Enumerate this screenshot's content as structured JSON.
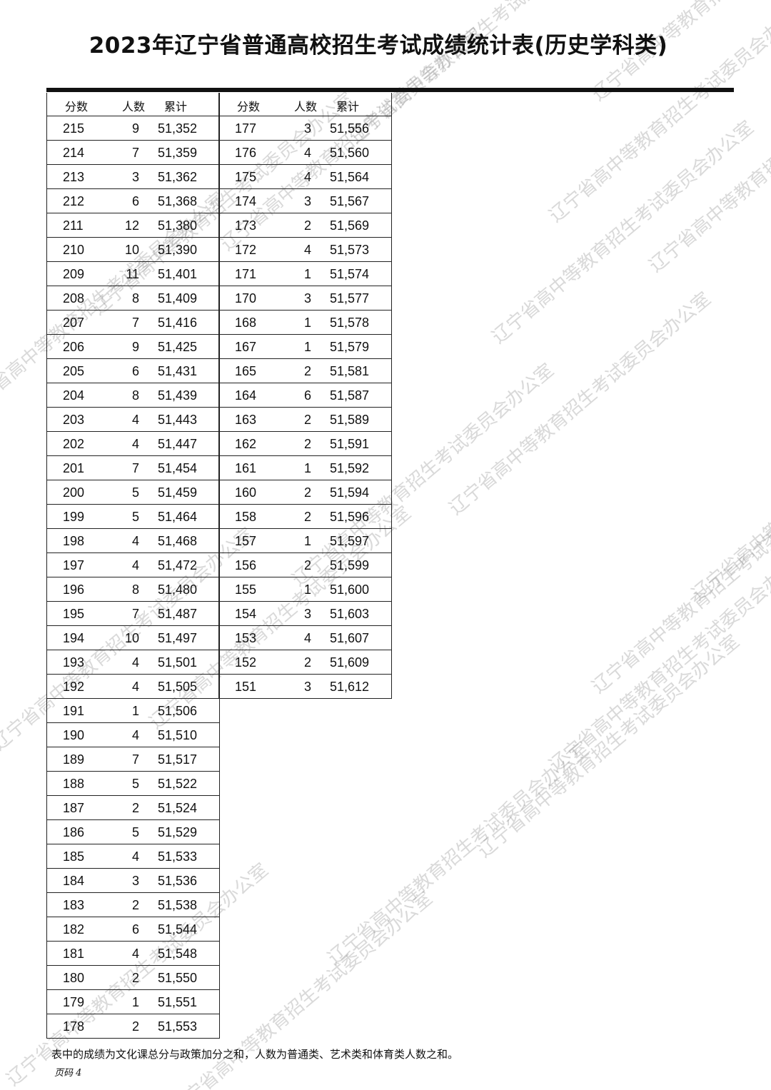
{
  "title": "2023年辽宁省普通高校招生考试成绩统计表(历史学科类)",
  "headers": [
    "分数",
    "人数",
    "累计"
  ],
  "left_rows": [
    [
      "215",
      "9",
      "51,352"
    ],
    [
      "214",
      "7",
      "51,359"
    ],
    [
      "213",
      "3",
      "51,362"
    ],
    [
      "212",
      "6",
      "51,368"
    ],
    [
      "211",
      "12",
      "51,380"
    ],
    [
      "210",
      "10",
      "51,390"
    ],
    [
      "209",
      "11",
      "51,401"
    ],
    [
      "208",
      "8",
      "51,409"
    ],
    [
      "207",
      "7",
      "51,416"
    ],
    [
      "206",
      "9",
      "51,425"
    ],
    [
      "205",
      "6",
      "51,431"
    ],
    [
      "204",
      "8",
      "51,439"
    ],
    [
      "203",
      "4",
      "51,443"
    ],
    [
      "202",
      "4",
      "51,447"
    ],
    [
      "201",
      "7",
      "51,454"
    ],
    [
      "200",
      "5",
      "51,459"
    ],
    [
      "199",
      "5",
      "51,464"
    ],
    [
      "198",
      "4",
      "51,468"
    ],
    [
      "197",
      "4",
      "51,472"
    ],
    [
      "196",
      "8",
      "51,480"
    ],
    [
      "195",
      "7",
      "51,487"
    ],
    [
      "194",
      "10",
      "51,497"
    ],
    [
      "193",
      "4",
      "51,501"
    ],
    [
      "192",
      "4",
      "51,505"
    ],
    [
      "191",
      "1",
      "51,506"
    ],
    [
      "190",
      "4",
      "51,510"
    ],
    [
      "189",
      "7",
      "51,517"
    ],
    [
      "188",
      "5",
      "51,522"
    ],
    [
      "187",
      "2",
      "51,524"
    ],
    [
      "186",
      "5",
      "51,529"
    ],
    [
      "185",
      "4",
      "51,533"
    ],
    [
      "184",
      "3",
      "51,536"
    ],
    [
      "183",
      "2",
      "51,538"
    ],
    [
      "182",
      "6",
      "51,544"
    ],
    [
      "181",
      "4",
      "51,548"
    ],
    [
      "180",
      "2",
      "51,550"
    ],
    [
      "179",
      "1",
      "51,551"
    ],
    [
      "178",
      "2",
      "51,553"
    ]
  ],
  "right_rows": [
    [
      "177",
      "3",
      "51,556"
    ],
    [
      "176",
      "4",
      "51,560"
    ],
    [
      "175",
      "4",
      "51,564"
    ],
    [
      "174",
      "3",
      "51,567"
    ],
    [
      "173",
      "2",
      "51,569"
    ],
    [
      "172",
      "4",
      "51,573"
    ],
    [
      "171",
      "1",
      "51,574"
    ],
    [
      "170",
      "3",
      "51,577"
    ],
    [
      "168",
      "1",
      "51,578"
    ],
    [
      "167",
      "1",
      "51,579"
    ],
    [
      "165",
      "2",
      "51,581"
    ],
    [
      "164",
      "6",
      "51,587"
    ],
    [
      "163",
      "2",
      "51,589"
    ],
    [
      "162",
      "2",
      "51,591"
    ],
    [
      "161",
      "1",
      "51,592"
    ],
    [
      "160",
      "2",
      "51,594"
    ],
    [
      "158",
      "2",
      "51,596"
    ],
    [
      "157",
      "1",
      "51,597"
    ],
    [
      "156",
      "2",
      "51,599"
    ],
    [
      "155",
      "1",
      "51,600"
    ],
    [
      "154",
      "3",
      "51,603"
    ],
    [
      "153",
      "4",
      "51,607"
    ],
    [
      "152",
      "2",
      "51,609"
    ],
    [
      "151",
      "3",
      "51,612"
    ]
  ],
  "note": "表中的成绩为文化课总分与政策加分之和，人数为普通类、艺术类和体育类人数之和。",
  "page_number": "页码 4",
  "watermark": "辽宁省高中等教育招生考试委员会办公室"
}
